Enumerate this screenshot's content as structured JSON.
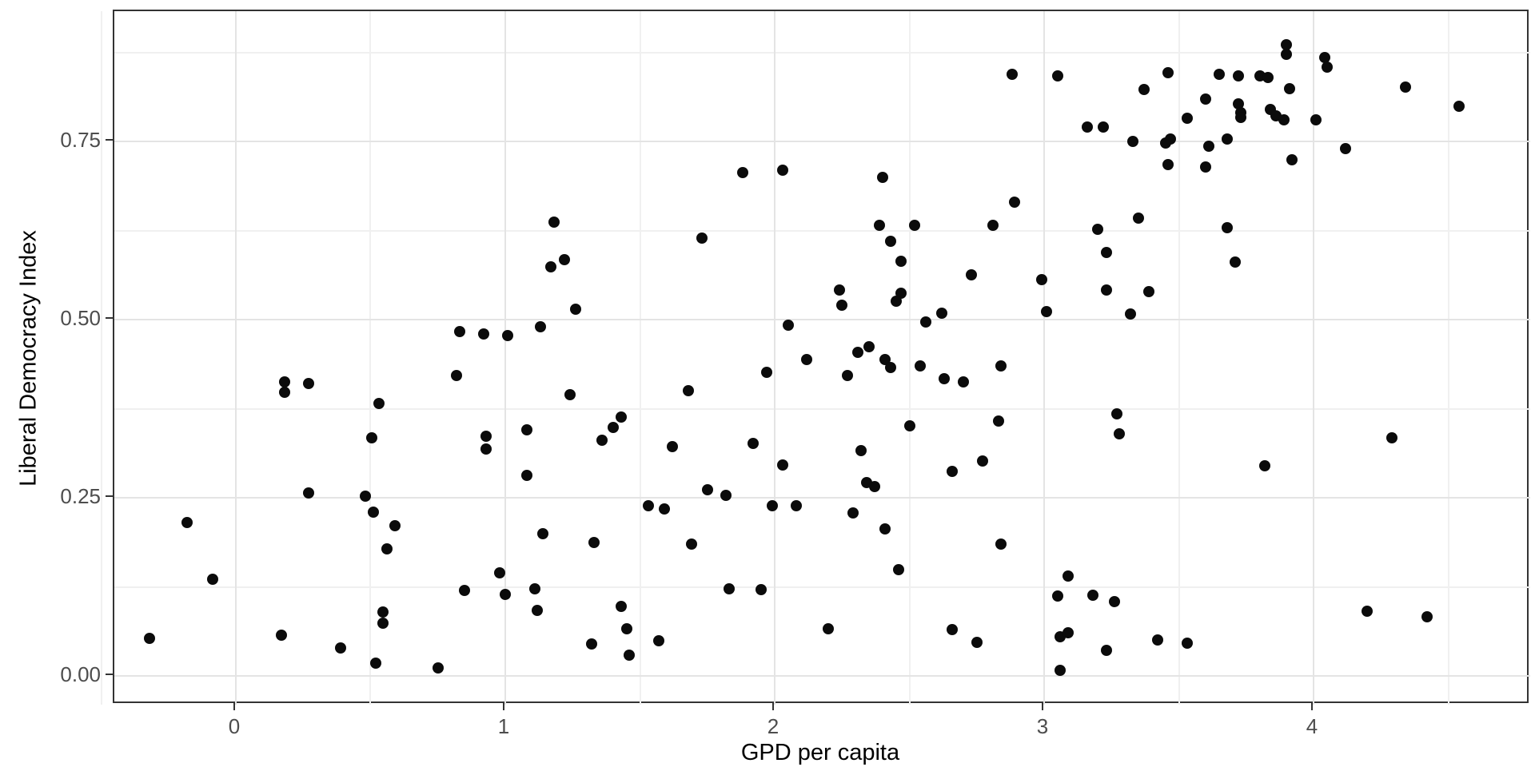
{
  "chart_data": {
    "type": "scatter",
    "title": "",
    "xlabel": "GPD per capita",
    "ylabel": "Liberal Democracy Index",
    "x_tick_labels": [
      "0",
      "1",
      "2",
      "3",
      "4"
    ],
    "x_tick_values": [
      0,
      1,
      2,
      3,
      4
    ],
    "y_tick_labels": [
      "0.00",
      "0.25",
      "0.50",
      "0.75"
    ],
    "y_tick_values": [
      0,
      0.25,
      0.5,
      0.75
    ],
    "x_minor_values": [
      -0.5,
      0.5,
      1.5,
      2.5,
      3.5,
      4.5
    ],
    "y_minor_values": [
      0.125,
      0.375,
      0.625,
      0.875
    ],
    "xlim": [
      -0.451,
      4.804
    ],
    "ylim": [
      -0.04,
      0.933
    ],
    "grid": "major-minor",
    "legend": "none",
    "colors": {
      "point": "#0b0b0b",
      "panel_border": "#333333",
      "grid_major": "#e4e4e4",
      "grid_minor": "#f0f0f0",
      "tick_text": "#4d4d4d",
      "axis_title_text": "#000000",
      "background": "#ffffff"
    },
    "points": [
      [
        -0.32,
        0.053
      ],
      [
        -0.18,
        0.216
      ],
      [
        -0.085,
        0.136
      ],
      [
        0.17,
        0.057
      ],
      [
        0.39,
        0.04
      ],
      [
        0.18,
        0.413
      ],
      [
        0.18,
        0.398
      ],
      [
        0.27,
        0.411
      ],
      [
        0.27,
        0.257
      ],
      [
        0.48,
        0.253
      ],
      [
        0.51,
        0.23
      ],
      [
        0.545,
        0.09
      ],
      [
        0.545,
        0.074
      ],
      [
        0.59,
        0.211
      ],
      [
        0.56,
        0.179
      ],
      [
        0.52,
        0.018
      ],
      [
        0.75,
        0.012
      ],
      [
        0.53,
        0.383
      ],
      [
        0.505,
        0.334
      ],
      [
        0.83,
        0.483
      ],
      [
        0.92,
        0.48
      ],
      [
        1.01,
        0.478
      ],
      [
        1.13,
        0.49
      ],
      [
        0.82,
        0.422
      ],
      [
        1.24,
        0.395
      ],
      [
        0.93,
        0.337
      ],
      [
        0.93,
        0.319
      ],
      [
        1.08,
        0.346
      ],
      [
        1.08,
        0.282
      ],
      [
        1.18,
        0.637
      ],
      [
        1.17,
        0.574
      ],
      [
        1.22,
        0.584
      ],
      [
        1.26,
        0.515
      ],
      [
        0.85,
        0.12
      ],
      [
        0.98,
        0.145
      ],
      [
        1.0,
        0.115
      ],
      [
        1.11,
        0.122
      ],
      [
        1.12,
        0.092
      ],
      [
        1.14,
        0.2
      ],
      [
        1.33,
        0.187
      ],
      [
        1.43,
        0.363
      ],
      [
        1.4,
        0.349
      ],
      [
        1.36,
        0.331
      ],
      [
        1.62,
        0.322
      ],
      [
        1.68,
        0.401
      ],
      [
        1.92,
        0.326
      ],
      [
        2.03,
        0.296
      ],
      [
        1.97,
        0.426
      ],
      [
        2.05,
        0.493
      ],
      [
        2.12,
        0.444
      ],
      [
        1.73,
        0.615
      ],
      [
        1.88,
        0.707
      ],
      [
        2.03,
        0.71
      ],
      [
        1.43,
        0.098
      ],
      [
        1.45,
        0.066
      ],
      [
        1.32,
        0.045
      ],
      [
        1.46,
        0.03
      ],
      [
        1.57,
        0.05
      ],
      [
        1.53,
        0.239
      ],
      [
        1.59,
        0.235
      ],
      [
        1.75,
        0.261
      ],
      [
        1.82,
        0.254
      ],
      [
        1.69,
        0.185
      ],
      [
        1.83,
        0.122
      ],
      [
        1.95,
        0.121
      ],
      [
        1.99,
        0.239
      ],
      [
        2.08,
        0.239
      ],
      [
        2.2,
        0.066
      ],
      [
        2.29,
        0.229
      ],
      [
        2.41,
        0.207
      ],
      [
        2.46,
        0.149
      ],
      [
        2.24,
        0.542
      ],
      [
        2.25,
        0.52
      ],
      [
        2.47,
        0.537
      ],
      [
        2.45,
        0.526
      ],
      [
        2.62,
        0.509
      ],
      [
        2.56,
        0.497
      ],
      [
        2.73,
        0.563
      ],
      [
        2.99,
        0.556
      ],
      [
        3.01,
        0.512
      ],
      [
        2.35,
        0.462
      ],
      [
        2.31,
        0.454
      ],
      [
        2.41,
        0.444
      ],
      [
        2.43,
        0.433
      ],
      [
        2.27,
        0.422
      ],
      [
        2.54,
        0.435
      ],
      [
        2.63,
        0.417
      ],
      [
        2.7,
        0.413
      ],
      [
        2.84,
        0.435
      ],
      [
        2.5,
        0.351
      ],
      [
        2.83,
        0.358
      ],
      [
        2.32,
        0.317
      ],
      [
        2.77,
        0.302
      ],
      [
        2.66,
        0.287
      ],
      [
        2.34,
        0.272
      ],
      [
        2.37,
        0.266
      ],
      [
        2.47,
        0.582
      ],
      [
        2.43,
        0.61
      ],
      [
        2.39,
        0.633
      ],
      [
        2.52,
        0.633
      ],
      [
        2.81,
        0.633
      ],
      [
        2.4,
        0.7
      ],
      [
        2.89,
        0.665
      ],
      [
        2.88,
        0.845
      ],
      [
        3.05,
        0.842
      ],
      [
        2.66,
        0.065
      ],
      [
        2.75,
        0.047
      ],
      [
        2.84,
        0.185
      ],
      [
        3.05,
        0.112
      ],
      [
        3.18,
        0.114
      ],
      [
        3.09,
        0.14
      ],
      [
        3.06,
        0.055
      ],
      [
        3.09,
        0.061
      ],
      [
        3.06,
        0.008
      ],
      [
        3.23,
        0.036
      ],
      [
        3.26,
        0.105
      ],
      [
        3.23,
        0.594
      ],
      [
        3.71,
        0.581
      ],
      [
        3.23,
        0.542
      ],
      [
        3.39,
        0.539
      ],
      [
        3.32,
        0.508
      ],
      [
        3.27,
        0.368
      ],
      [
        3.28,
        0.34
      ],
      [
        4.29,
        0.334
      ],
      [
        3.82,
        0.295
      ],
      [
        4.2,
        0.091
      ],
      [
        4.42,
        0.083
      ],
      [
        3.42,
        0.051
      ],
      [
        3.53,
        0.046
      ],
      [
        3.2,
        0.627
      ],
      [
        3.35,
        0.643
      ],
      [
        3.68,
        0.629
      ],
      [
        3.16,
        0.77
      ],
      [
        3.22,
        0.771
      ],
      [
        3.33,
        0.75
      ],
      [
        3.45,
        0.748
      ],
      [
        3.47,
        0.754
      ],
      [
        3.61,
        0.743
      ],
      [
        3.68,
        0.754
      ],
      [
        3.46,
        0.718
      ],
      [
        3.6,
        0.714
      ],
      [
        3.92,
        0.724
      ],
      [
        3.37,
        0.823
      ],
      [
        3.46,
        0.847
      ],
      [
        3.53,
        0.783
      ],
      [
        3.6,
        0.81
      ],
      [
        3.65,
        0.845
      ],
      [
        3.72,
        0.842
      ],
      [
        3.8,
        0.842
      ],
      [
        3.83,
        0.84
      ],
      [
        3.72,
        0.803
      ],
      [
        3.73,
        0.791
      ],
      [
        3.73,
        0.784
      ],
      [
        3.84,
        0.795
      ],
      [
        3.86,
        0.786
      ],
      [
        3.89,
        0.781
      ],
      [
        3.9,
        0.886
      ],
      [
        3.9,
        0.872
      ],
      [
        3.91,
        0.824
      ],
      [
        4.01,
        0.781
      ],
      [
        4.04,
        0.868
      ],
      [
        4.05,
        0.855
      ],
      [
        4.12,
        0.74
      ],
      [
        4.34,
        0.827
      ],
      [
        4.54,
        0.8
      ]
    ]
  }
}
